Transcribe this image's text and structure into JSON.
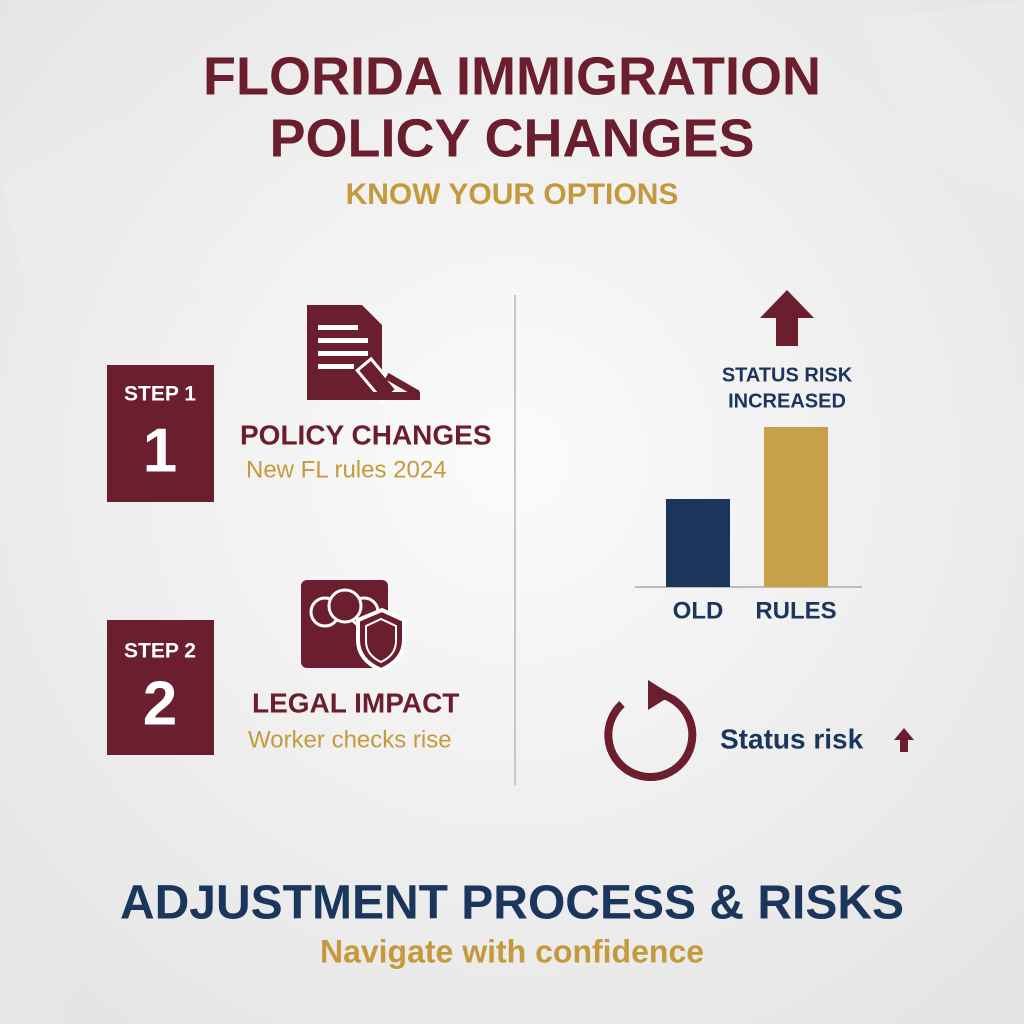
{
  "header": {
    "title_lines": [
      "FLORIDA IMMIGRATION",
      "POLICY CHANGES"
    ],
    "subtitle": "KNOW YOUR OPTIONS"
  },
  "steps": [
    {
      "badge": "STEP 1",
      "number": "1",
      "heading": "POLICY CHANGES",
      "detail": "New FL rules 2024"
    },
    {
      "badge": "STEP 2",
      "number": "2",
      "heading": "LEGAL IMPACT",
      "detail": "Worker checks rise"
    }
  ],
  "chart": {
    "type": "bar",
    "annotation_lines": [
      "STATUS RISK",
      "INCREASED"
    ],
    "categories": [
      "OLD",
      "RULES"
    ],
    "values": [
      55,
      100
    ],
    "colors": [
      "#1b365d",
      "#c9a04a"
    ],
    "ylim": [
      0,
      100
    ]
  },
  "status_note": "Status risk",
  "footer": {
    "title": "ADJUSTMENT PROCESS & RISKS",
    "tagline": "Navigate with confidence"
  }
}
